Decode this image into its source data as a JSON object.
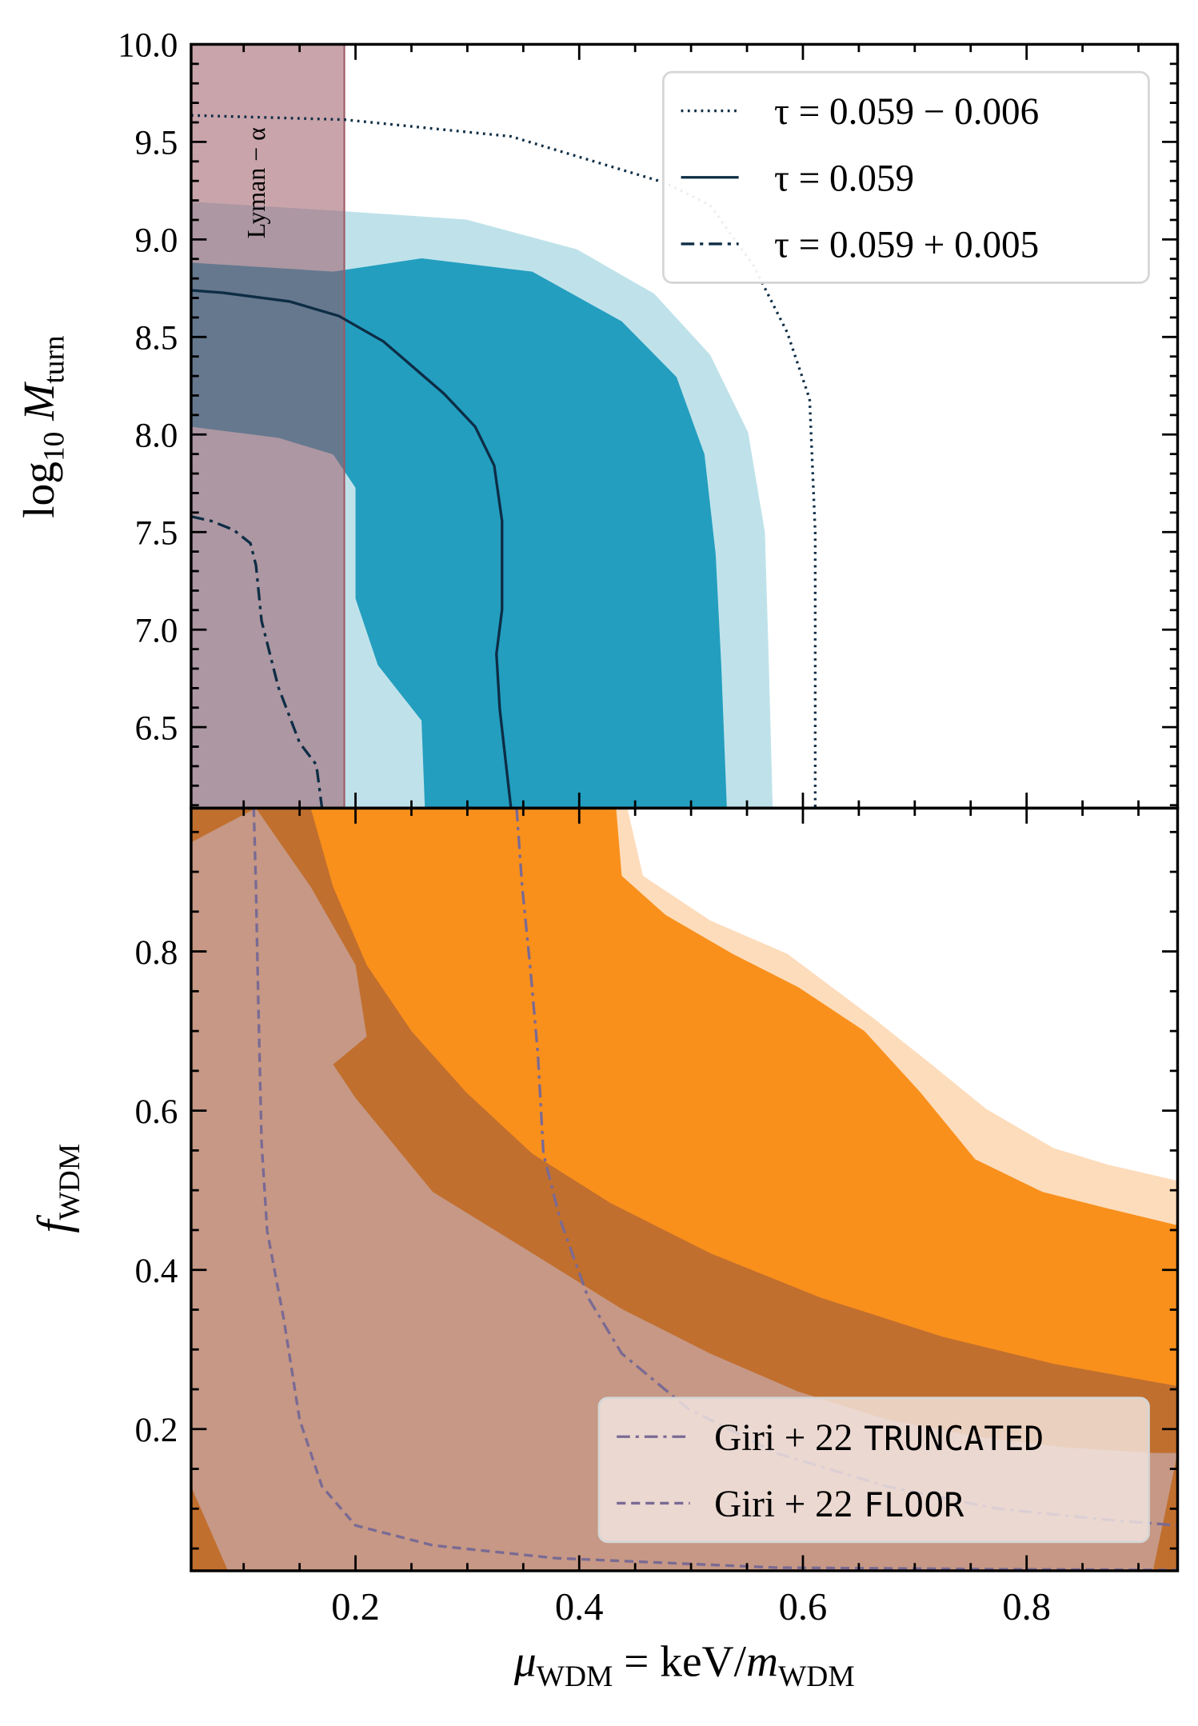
{
  "chart_data": [
    {
      "type": "contour",
      "ylabel": {
        "base": "log",
        "base_sub": "10",
        "symbol": "M",
        "symbol_sub": "turn"
      },
      "xlim": [
        0.053,
        0.935
      ],
      "ylim": [
        6.085,
        10.0
      ],
      "yticks": [
        {
          "value": 10.0,
          "label": "10.0"
        },
        9.5,
        {
          "value": 9.0,
          "label": "9.0"
        },
        8.5,
        {
          "value": 8.0,
          "label": "8.0"
        },
        7.5,
        {
          "value": 7.0,
          "label": "7.0"
        },
        6.5
      ],
      "yminorticks": [
        6.1,
        6.2,
        6.3,
        6.4,
        6.6,
        6.7,
        6.8,
        6.9,
        7.1,
        7.2,
        7.3,
        7.4,
        7.6,
        7.7,
        7.8,
        7.9,
        8.1,
        8.2,
        8.3,
        8.4,
        8.6,
        8.7,
        8.8,
        8.9,
        9.1,
        9.2,
        9.3,
        9.4,
        9.6,
        9.7,
        9.8,
        9.9
      ],
      "regions": [
        {
          "color": "#bfe2ea",
          "x": [
            0.053,
            0.18,
            0.299,
            0.398,
            0.467,
            0.517,
            0.551,
            0.566,
            0.569,
            0.573,
            0.053
          ],
          "y": [
            9.193,
            9.148,
            9.102,
            8.949,
            8.722,
            8.409,
            8.011,
            7.5,
            6.932,
            6.085,
            6.085
          ]
        },
        {
          "color": "#239ebf",
          "x": [
            0.053,
            0.18,
            0.259,
            0.358,
            0.438,
            0.487,
            0.512,
            0.522,
            0.527,
            0.532,
            0.262,
            0.259,
            0.22,
            0.2,
            0.2,
            0.18,
            0.131,
            0.053
          ],
          "y": [
            8.881,
            8.835,
            8.903,
            8.835,
            8.58,
            8.295,
            7.898,
            7.386,
            6.818,
            6.085,
            6.085,
            6.534,
            6.818,
            7.159,
            7.727,
            7.898,
            7.983,
            8.04
          ]
        }
      ],
      "band": {
        "label": "Lyman − α",
        "x": [
          0.053,
          0.19
        ],
        "color": "#9c5a66",
        "opacity": 0.55
      },
      "series": [
        {
          "name": "τ = 0.059 − 0.006",
          "color": "#0d2d45",
          "style": "dotted",
          "x": [
            0.053,
            0.19,
            0.339,
            0.477,
            0.517,
            0.556,
            0.586,
            0.606,
            0.611,
            0.611,
            0.611
          ],
          "y": [
            9.636,
            9.614,
            9.528,
            9.29,
            9.176,
            8.864,
            8.523,
            8.182,
            7.5,
            6.818,
            6.085
          ]
        },
        {
          "name": "τ = 0.059",
          "color": "#0d2d45",
          "style": "solid",
          "x": [
            0.053,
            0.081,
            0.141,
            0.185,
            0.225,
            0.279,
            0.307,
            0.324,
            0.331,
            0.331,
            0.326,
            0.329,
            0.339
          ],
          "y": [
            8.739,
            8.727,
            8.682,
            8.608,
            8.477,
            8.21,
            8.04,
            7.841,
            7.557,
            7.102,
            6.875,
            6.591,
            6.085
          ]
        },
        {
          "name": "τ = 0.059 + 0.005",
          "color": "#0d2d45",
          "style": "dashdot",
          "x": [
            0.053,
            0.071,
            0.091,
            0.106,
            0.111,
            0.116,
            0.131,
            0.15,
            0.165,
            0.17
          ],
          "y": [
            7.58,
            7.557,
            7.511,
            7.443,
            7.33,
            7.045,
            6.705,
            6.42,
            6.307,
            6.085
          ]
        }
      ],
      "legend": "upper right"
    },
    {
      "type": "contour",
      "xlabel": {
        "symbol": "μ",
        "symbol_sub": "WDM",
        "rel": "= keV/",
        "mass": "m",
        "mass_sub": "WDM"
      },
      "ylabel": {
        "symbol": "f",
        "symbol_sub": "WDM"
      },
      "xlim": [
        0.053,
        0.935
      ],
      "ylim": [
        0.022,
        0.98
      ],
      "xticks": [
        0.2,
        0.4,
        0.6,
        0.8
      ],
      "xminorticks": [
        0.1,
        0.15,
        0.25,
        0.3,
        0.35,
        0.45,
        0.5,
        0.55,
        0.65,
        0.7,
        0.75,
        0.85,
        0.9
      ],
      "yticks": [
        0.2,
        0.4,
        0.6,
        0.8
      ],
      "yminorticks": [
        0.05,
        0.1,
        0.15,
        0.25,
        0.3,
        0.35,
        0.45,
        0.5,
        0.55,
        0.65,
        0.7,
        0.75,
        0.85,
        0.9,
        0.95
      ],
      "regions": [
        {
          "color": "#fddcbb",
          "x": [
            0.053,
            0.443,
            0.457,
            0.517,
            0.586,
            0.665,
            0.715,
            0.764,
            0.824,
            0.873,
            0.935,
            0.935,
            0.053
          ],
          "y": [
            0.98,
            0.98,
            0.895,
            0.839,
            0.797,
            0.714,
            0.658,
            0.602,
            0.553,
            0.532,
            0.512,
            0.022,
            0.022
          ]
        },
        {
          "color": "#f9901c",
          "x": [
            0.053,
            0.433,
            0.438,
            0.477,
            0.537,
            0.596,
            0.655,
            0.705,
            0.754,
            0.814,
            0.873,
            0.935,
            0.935,
            0.053
          ],
          "y": [
            0.98,
            0.98,
            0.895,
            0.846,
            0.797,
            0.755,
            0.7,
            0.623,
            0.539,
            0.498,
            0.477,
            0.456,
            0.022,
            0.022
          ]
        },
        {
          "color": "#93543e",
          "opacity": 0.55,
          "x": [
            0.16,
            0.18,
            0.21,
            0.25,
            0.299,
            0.358,
            0.428,
            0.517,
            0.616,
            0.725,
            0.824,
            0.935,
            0.935,
            0.053,
            0.053
          ],
          "y": [
            0.98,
            0.881,
            0.783,
            0.7,
            0.623,
            0.546,
            0.484,
            0.421,
            0.365,
            0.316,
            0.282,
            0.254,
            0.022,
            0.022,
            0.98
          ]
        },
        {
          "color": "#c69a8a",
          "opacity": 0.95,
          "x": [
            0.053,
            0.111,
            0.16,
            0.2,
            0.21,
            0.18,
            0.2,
            0.269,
            0.358,
            0.438,
            0.517,
            0.596,
            0.675,
            0.754,
            0.834,
            0.913,
            0.935,
            0.913,
            0.086,
            0.053
          ],
          "y": [
            0.937,
            0.98,
            0.881,
            0.783,
            0.693,
            0.658,
            0.616,
            0.498,
            0.421,
            0.351,
            0.295,
            0.247,
            0.212,
            0.191,
            0.177,
            0.17,
            0.17,
            0.022,
            0.022,
            0.128
          ]
        }
      ],
      "series": [
        {
          "name": "Giri + 22",
          "tag": "TRUNCATED",
          "color": "#7a6a94",
          "style": "dashdot",
          "x": [
            0.344,
            0.349,
            0.356,
            0.363,
            0.368,
            0.383,
            0.408,
            0.438,
            0.497,
            0.576,
            0.675,
            0.774,
            0.873,
            0.935
          ],
          "y": [
            0.98,
            0.881,
            0.783,
            0.672,
            0.546,
            0.463,
            0.365,
            0.295,
            0.226,
            0.17,
            0.128,
            0.1,
            0.086,
            0.079
          ]
        },
        {
          "name": "Giri + 22",
          "tag": "FLOOR",
          "color": "#7a6a94",
          "style": "dashed",
          "x": [
            0.109,
            0.111,
            0.113,
            0.116,
            0.121,
            0.136,
            0.15,
            0.17,
            0.2,
            0.269,
            0.378,
            0.576,
            0.774,
            0.935
          ],
          "y": [
            0.98,
            0.881,
            0.741,
            0.56,
            0.449,
            0.337,
            0.212,
            0.128,
            0.079,
            0.054,
            0.038,
            0.026,
            0.024,
            0.023
          ]
        }
      ],
      "legend": "lower right"
    }
  ]
}
